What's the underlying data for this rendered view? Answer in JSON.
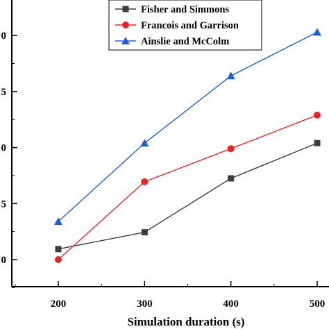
{
  "chart_data": {
    "type": "line",
    "title": "",
    "xlabel": "Simulation duration (s)",
    "ylabel": "",
    "x": [
      200,
      300,
      400,
      500
    ],
    "x_tick_labels": [
      "200",
      "300",
      "400",
      "500"
    ],
    "xlim": [
      150,
      520
    ],
    "y_tick_labels": [
      "0",
      "5",
      "0",
      "5",
      "0"
    ],
    "grid": false,
    "legend_position": "top-right",
    "series": [
      {
        "name": "Fisher and Simmons",
        "color": "#3d3d3d",
        "marker": "square",
        "values": [
          0.94,
          2.44,
          7.25,
          10.4
        ]
      },
      {
        "name": "Francois and Garrison",
        "color": "#e8262a",
        "marker": "circle",
        "values": [
          0.0,
          6.95,
          9.9,
          12.9
        ]
      },
      {
        "name": "Ainslie and McColm",
        "color": "#1f5fd6",
        "marker": "triangle",
        "values": [
          3.4,
          10.4,
          16.4,
          20.3
        ]
      }
    ]
  }
}
